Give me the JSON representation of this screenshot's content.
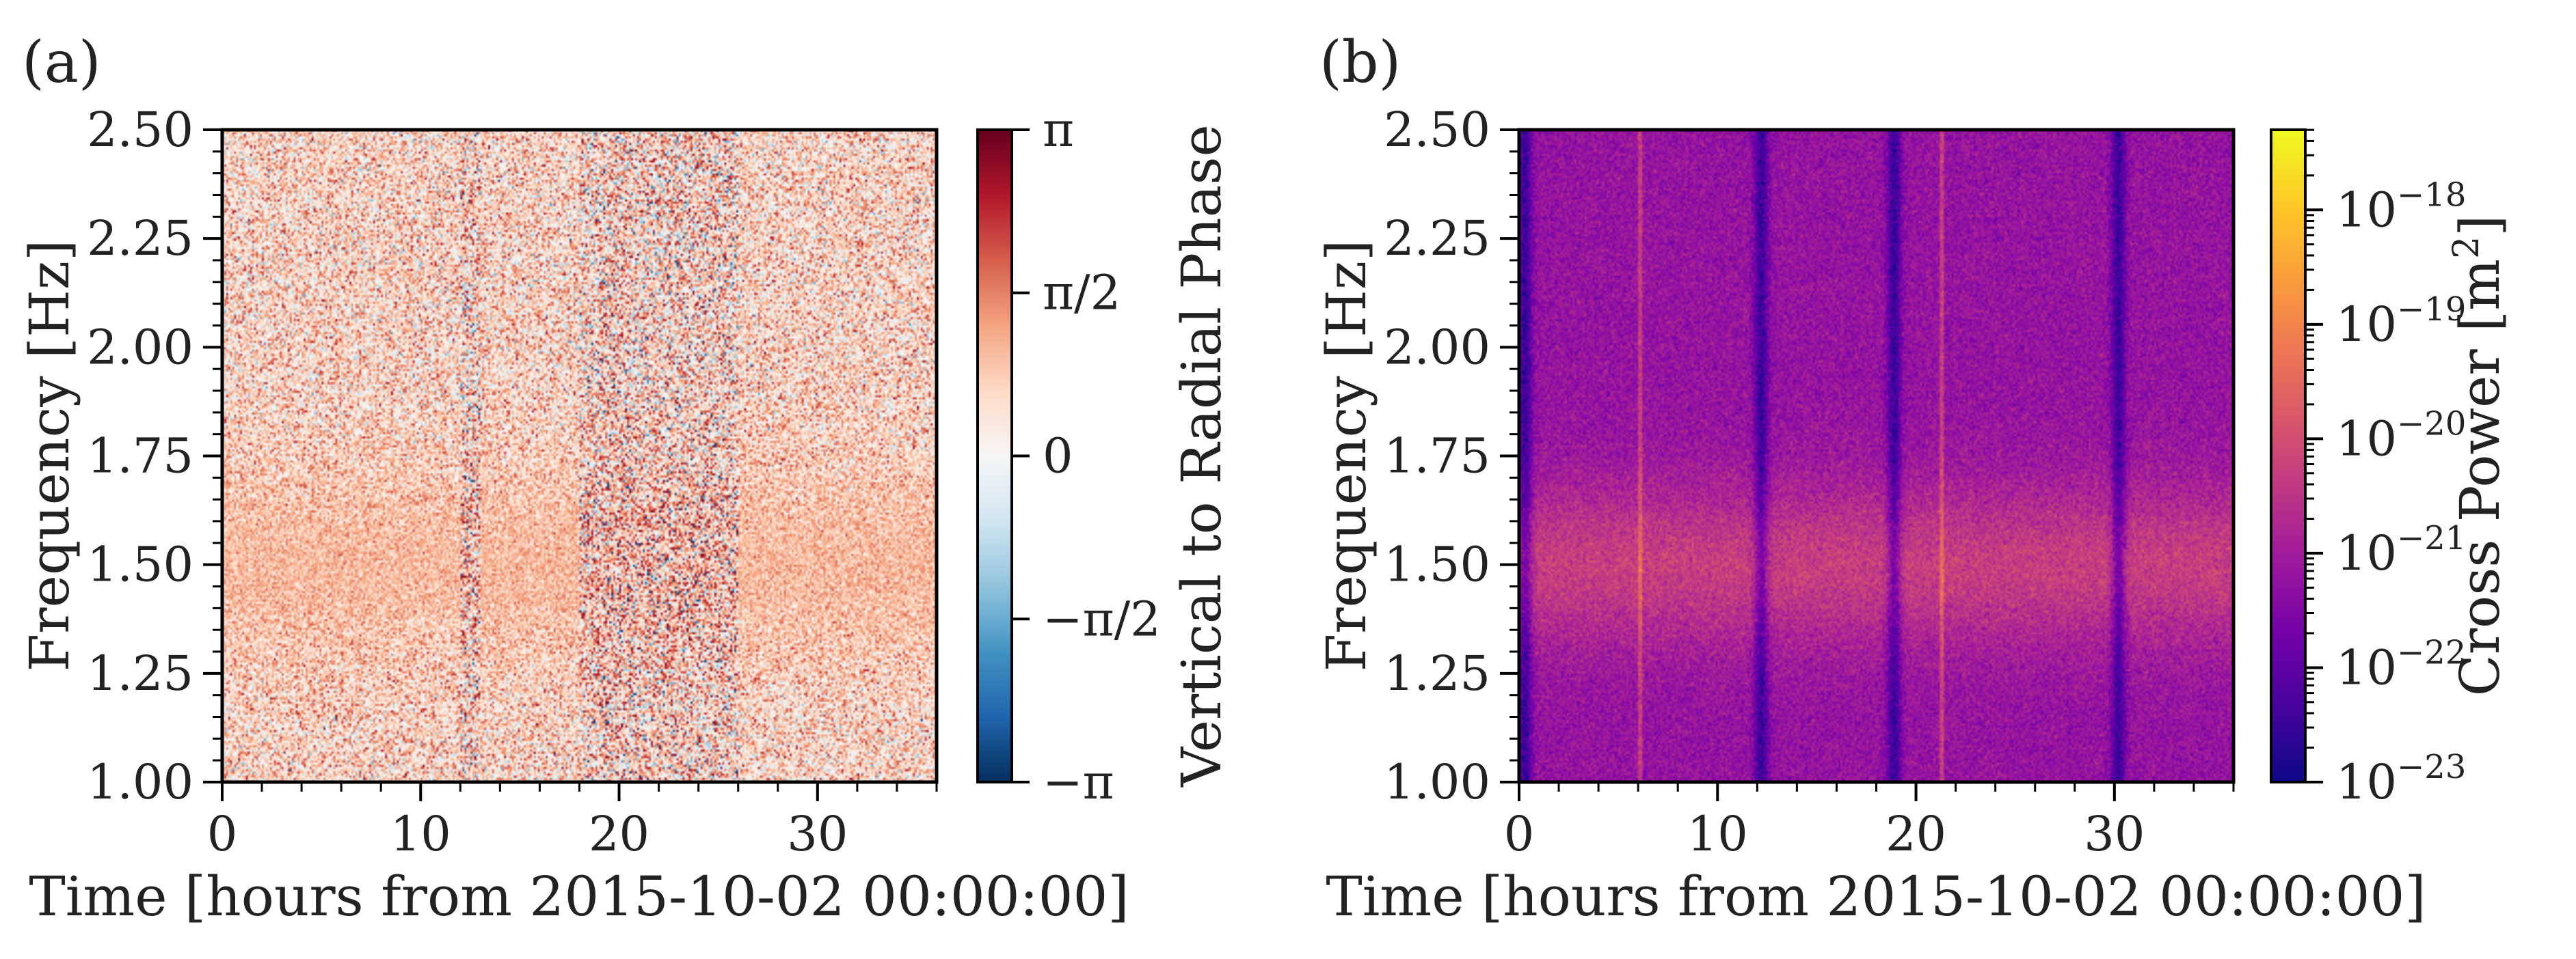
{
  "chart_data": [
    {
      "panel_label": "(a)",
      "type": "heatmap",
      "xlabel": "Time [hours from 2015-10-02 00:00:00]",
      "ylabel": "Frequency [Hz]",
      "xlim": [
        0,
        36
      ],
      "ylim": [
        1.0,
        2.5
      ],
      "x_ticks": [
        0,
        10,
        20,
        30
      ],
      "x_tick_labels": [
        "0",
        "10",
        "20",
        "30"
      ],
      "y_ticks": [
        1.0,
        1.25,
        1.5,
        1.75,
        2.0,
        2.25,
        2.5
      ],
      "y_tick_labels": [
        "1.00",
        "1.25",
        "1.50",
        "1.75",
        "2.00",
        "2.25",
        "2.50"
      ],
      "colorbar": {
        "label": "Vertical to Radial Phase",
        "colormap": "RdBu_r",
        "range": [
          -3.14159,
          3.14159
        ],
        "ticks": [
          -3.14159,
          -1.5708,
          0,
          1.5708,
          3.14159
        ],
        "tick_labels": [
          "−π",
          "−π/2",
          "0",
          "π/2",
          "π"
        ],
        "colors": [
          "#053061",
          "#2166ac",
          "#4393c3",
          "#92c5de",
          "#d1e5f0",
          "#f7f7f7",
          "#fddbc7",
          "#f4a582",
          "#d6604d",
          "#b2182b",
          "#67001f"
        ]
      },
      "features": {
        "dominant_band_hz": [
          1.4,
          1.6
        ],
        "band_mean_phase": 1.0,
        "noisy_time_ranges_hours": [
          [
            12,
            13
          ],
          [
            18,
            26
          ]
        ]
      }
    },
    {
      "panel_label": "(b)",
      "type": "heatmap",
      "xlabel": "Time [hours from 2015-10-02 00:00:00]",
      "ylabel": "Frequency [Hz]",
      "xlim": [
        0,
        36
      ],
      "ylim": [
        1.0,
        2.5
      ],
      "x_ticks": [
        0,
        10,
        20,
        30
      ],
      "x_tick_labels": [
        "0",
        "10",
        "20",
        "30"
      ],
      "y_ticks": [
        1.0,
        1.25,
        1.5,
        1.75,
        2.0,
        2.25,
        2.5
      ],
      "y_tick_labels": [
        "1.00",
        "1.25",
        "1.50",
        "1.75",
        "2.00",
        "2.25",
        "2.50"
      ],
      "colorbar": {
        "label": "Cross Power [m",
        "label_superscript": "2",
        "label_suffix": "]",
        "colormap": "plasma",
        "scale": "log",
        "range_exponent": [
          -23,
          -17.3
        ],
        "ticks_exponent": [
          -23,
          -22,
          -21,
          -20,
          -19,
          -18
        ],
        "tick_base": "10",
        "tick_exponent_labels": [
          "−23",
          "−22",
          "−21",
          "−20",
          "−19",
          "−18"
        ],
        "colors": [
          "#0d0887",
          "#46039f",
          "#7201a8",
          "#9c179e",
          "#bd3786",
          "#d8576b",
          "#ed7953",
          "#fb9f3a",
          "#fdca26",
          "#f0f921"
        ]
      },
      "features": {
        "dominant_band_hz": [
          1.4,
          1.6
        ],
        "low_power_times_hours": [
          0.3,
          12.2,
          18.9,
          30.2
        ],
        "high_power_lines_hours": [
          6.1,
          21.3
        ]
      }
    }
  ]
}
